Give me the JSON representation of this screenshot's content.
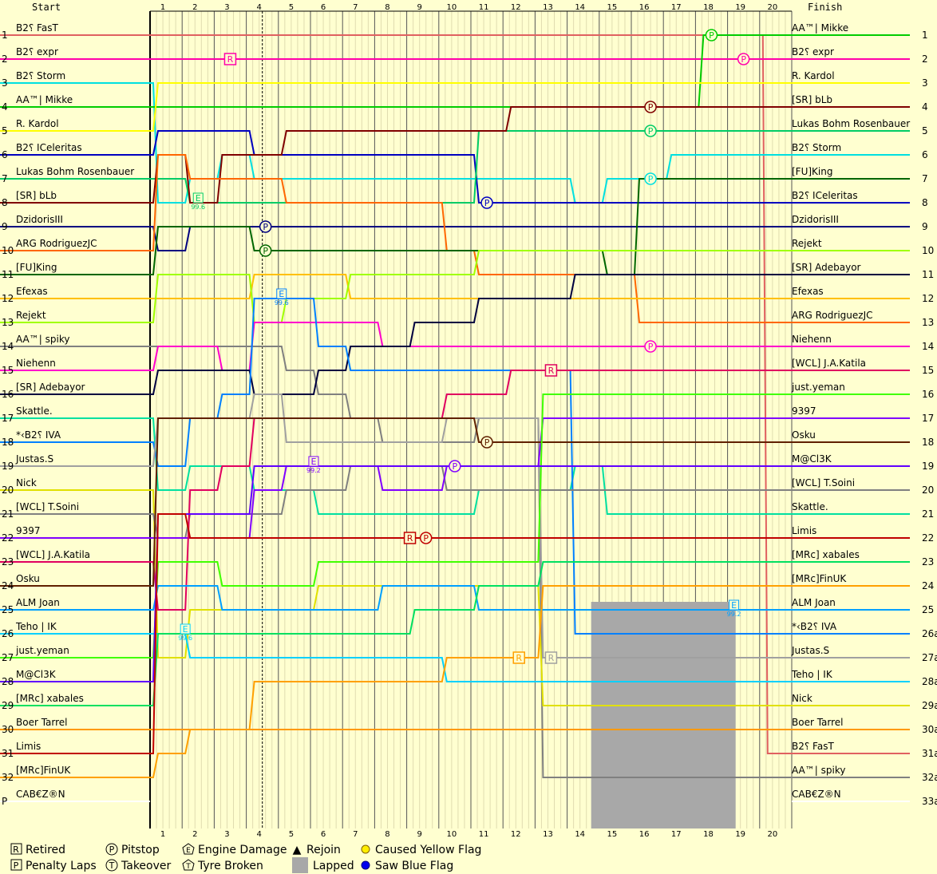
{
  "chart_data": {
    "type": "line",
    "headers": {
      "start": "Start",
      "finish": "Finish"
    },
    "laps": [
      1,
      2,
      3,
      4,
      5,
      6,
      7,
      8,
      9,
      10,
      11,
      12,
      13,
      14,
      15,
      16,
      17,
      18,
      19,
      20
    ],
    "position_labels": [
      "1",
      "2",
      "3",
      "4",
      "5",
      "6",
      "7",
      "8",
      "9",
      "10",
      "11",
      "12",
      "13",
      "14",
      "15",
      "16",
      "17",
      "18",
      "19",
      "20",
      "21",
      "22",
      "23",
      "24",
      "25",
      "26",
      "27",
      "28",
      "29",
      "30",
      "31",
      "32",
      "P"
    ],
    "finish_position_labels": [
      "1",
      "2",
      "3",
      "4",
      "5",
      "6",
      "7",
      "8",
      "9",
      "10",
      "11",
      "12",
      "13",
      "14",
      "15",
      "16",
      "17",
      "18",
      "19",
      "20",
      "21",
      "22",
      "23",
      "24",
      "25",
      "26a",
      "27a",
      "28a",
      "29a",
      "30a",
      "31a",
      "32a",
      "33a"
    ],
    "start_order": [
      "B2⸮ FasT",
      "B2⸮ expr",
      "B2⸮ Storm",
      "AA™| Mikke",
      "R. Kardol",
      "B2⸮ ICeleritas",
      "Lukas Bohm Rosenbauer",
      "[SR] bLb",
      "DzidorisIII",
      "ARG RodriguezJC",
      "[FU]King",
      "Efexas",
      "Rejekt",
      "AA™| spiky",
      "Niehenn",
      "[SR] Adebayor",
      "Skattle.",
      "*‹B2⸮ IVA",
      "Justas.S",
      "Nick",
      "[WCL] T.Soini",
      "9397",
      "[WCL] J.A.Katila",
      "Osku",
      "ALM Joan",
      "Teho | IK",
      "just.yeman",
      "M@Cl3K",
      "[MRc] xabales",
      "Boer Tarrel",
      "Limis",
      "[MRc]FinUK",
      "CAB€Z®N"
    ],
    "finish_order": [
      "AA™| Mikke",
      "B2⸮ expr",
      "R. Kardol",
      "[SR] bLb",
      "Lukas Bohm Rosenbauer",
      "B2⸮ Storm",
      "[FU]King",
      "B2⸮ ICeleritas",
      "DzidorisIII",
      "Rejekt",
      "[SR] Adebayor",
      "Efexas",
      "ARG RodriguezJC",
      "Niehenn",
      "[WCL] J.A.Katila",
      "just.yeman",
      "9397",
      "Osku",
      "M@Cl3K",
      "[WCL] T.Soini",
      "Skattle.",
      "Limis",
      "[MRc] xabales",
      "[MRc]FinUK",
      "ALM Joan",
      "*‹B2⸮ IVA",
      "Justas.S",
      "Teho | IK",
      "Nick",
      "Boer Tarrel",
      "B2⸮ FasT",
      "AA™| spiky",
      "CAB€Z®N"
    ],
    "series": [
      {
        "driver": "B2⸮ FasT",
        "color": "#e06060",
        "positions": [
          1,
          1,
          1,
          1,
          1,
          1,
          1,
          1,
          1,
          1,
          1,
          1,
          1,
          1,
          1,
          1,
          1,
          1,
          1,
          1,
          31
        ],
        "status": "Retired"
      },
      {
        "driver": "B2⸮ expr",
        "color": "#ff00aa",
        "positions": [
          2,
          2,
          2,
          2,
          2,
          2,
          2,
          2,
          2,
          2,
          2,
          2,
          2,
          2,
          2,
          2,
          2,
          2,
          2,
          2,
          2
        ]
      },
      {
        "driver": "B2⸮ Storm",
        "color": "#00e0e0",
        "positions": [
          3,
          8,
          7,
          6,
          7,
          7,
          7,
          7,
          7,
          7,
          7,
          7,
          7,
          7,
          8,
          7,
          7,
          6,
          6,
          6,
          6
        ]
      },
      {
        "driver": "AA™| Mikke",
        "color": "#00cc00",
        "positions": [
          4,
          4,
          4,
          4,
          4,
          4,
          4,
          4,
          4,
          4,
          4,
          4,
          4,
          4,
          4,
          4,
          4,
          4,
          1,
          1,
          1
        ]
      },
      {
        "driver": "R. Kardol",
        "color": "#ffff00",
        "positions": [
          5,
          3,
          3,
          3,
          3,
          3,
          3,
          3,
          3,
          3,
          3,
          3,
          3,
          3,
          3,
          3,
          3,
          3,
          3,
          3,
          3
        ]
      },
      {
        "driver": "B2⸮ ICeleritas",
        "color": "#0000c0",
        "positions": [
          6,
          5,
          5,
          5,
          6,
          6,
          6,
          6,
          6,
          6,
          6,
          8,
          8,
          8,
          8,
          8,
          8,
          8,
          8,
          8,
          8
        ]
      },
      {
        "driver": "Lukas Bohm Rosenbauer",
        "color": "#00cc66",
        "positions": [
          7,
          7,
          8,
          8,
          8,
          8,
          8,
          8,
          8,
          8,
          8,
          5,
          5,
          5,
          5,
          5,
          5,
          5,
          5,
          5,
          5
        ]
      },
      {
        "driver": "[SR] bLb",
        "color": "#800000",
        "positions": [
          8,
          6,
          8,
          6,
          6,
          5,
          5,
          5,
          5,
          5,
          5,
          5,
          4,
          4,
          4,
          4,
          4,
          4,
          4,
          4,
          4
        ]
      },
      {
        "driver": "DzidorisIII",
        "color": "#000080",
        "positions": [
          9,
          10,
          9,
          9,
          9,
          9,
          9,
          9,
          9,
          9,
          9,
          9,
          9,
          9,
          9,
          9,
          9,
          9,
          9,
          9,
          9
        ]
      },
      {
        "driver": "ARG RodriguezJC",
        "color": "#ff6600",
        "positions": [
          10,
          6,
          7,
          7,
          7,
          8,
          8,
          8,
          8,
          8,
          10,
          11,
          11,
          11,
          11,
          11,
          13,
          13,
          13,
          13,
          13
        ]
      },
      {
        "driver": "[FU]King",
        "color": "#006600",
        "positions": [
          11,
          9,
          9,
          9,
          10,
          10,
          10,
          10,
          10,
          10,
          10,
          10,
          10,
          10,
          10,
          11,
          7,
          7,
          7,
          7,
          7
        ]
      },
      {
        "driver": "Efexas",
        "color": "#ffc000",
        "positions": [
          12,
          12,
          12,
          12,
          11,
          11,
          11,
          12,
          12,
          12,
          12,
          12,
          12,
          12,
          12,
          12,
          12,
          12,
          12,
          12,
          12
        ]
      },
      {
        "driver": "Rejekt",
        "color": "#a0ff00",
        "positions": [
          13,
          11,
          11,
          11,
          13,
          12,
          12,
          11,
          11,
          11,
          11,
          10,
          10,
          10,
          10,
          10,
          10,
          10,
          10,
          10,
          10
        ]
      },
      {
        "driver": "AA™| spiky",
        "color": "#808080",
        "positions": [
          14,
          14,
          14,
          14,
          14,
          15,
          16,
          17,
          18,
          18,
          18,
          17,
          17,
          32,
          32,
          32,
          32,
          32,
          32,
          32,
          32
        ]
      },
      {
        "driver": "Niehenn",
        "color": "#ff00cc",
        "positions": [
          15,
          14,
          14,
          15,
          13,
          13,
          13,
          13,
          14,
          14,
          14,
          14,
          14,
          14,
          14,
          14,
          14,
          14,
          14,
          14,
          14
        ]
      },
      {
        "driver": "[SR] Adebayor",
        "color": "#000040",
        "positions": [
          16,
          15,
          15,
          15,
          16,
          16,
          15,
          14,
          14,
          13,
          13,
          12,
          12,
          12,
          11,
          11,
          11,
          11,
          11,
          11,
          11
        ]
      },
      {
        "driver": "Skattle.",
        "color": "#00e0a0",
        "positions": [
          17,
          20,
          19,
          19,
          20,
          20,
          21,
          21,
          21,
          21,
          21,
          20,
          20,
          20,
          19,
          21,
          21,
          21,
          21,
          21,
          21
        ]
      },
      {
        "driver": "*‹B2⸮ IVA",
        "color": "#0080ff",
        "positions": [
          18,
          19,
          17,
          16,
          12,
          12,
          14,
          15,
          15,
          15,
          15,
          15,
          15,
          15,
          26,
          26,
          26,
          26,
          26,
          26,
          26
        ]
      },
      {
        "driver": "Justas.S",
        "color": "#a0a0a0",
        "positions": [
          19,
          17,
          17,
          17,
          16,
          18,
          18,
          18,
          18,
          18,
          17,
          17,
          17,
          27,
          27,
          27,
          27,
          27,
          27,
          27,
          27
        ]
      },
      {
        "driver": "Nick",
        "color": "#e0e000",
        "positions": [
          20,
          27,
          25,
          25,
          25,
          25,
          24,
          24,
          24,
          24,
          24,
          24,
          24,
          29,
          29,
          29,
          29,
          29,
          29,
          29,
          29
        ]
      },
      {
        "driver": "[WCL] T.Soini",
        "color": "#808080",
        "positions": [
          21,
          22,
          21,
          21,
          21,
          20,
          20,
          19,
          19,
          19,
          20,
          20,
          20,
          20,
          20,
          20,
          20,
          20,
          20,
          20,
          20
        ]
      },
      {
        "driver": "9397",
        "color": "#8000ff",
        "positions": [
          22,
          22,
          22,
          22,
          20,
          19,
          19,
          19,
          20,
          20,
          19,
          19,
          19,
          17,
          17,
          17,
          17,
          17,
          17,
          17,
          17
        ]
      },
      {
        "driver": "[WCL] J.A.Katila",
        "color": "#e00060",
        "positions": [
          23,
          25,
          20,
          19,
          17,
          17,
          17,
          17,
          17,
          17,
          16,
          16,
          15,
          15,
          15,
          15,
          15,
          15,
          15,
          15,
          15
        ]
      },
      {
        "driver": "Osku",
        "color": "#602000",
        "positions": [
          24,
          17,
          17,
          17,
          17,
          17,
          17,
          17,
          17,
          17,
          17,
          18,
          18,
          18,
          18,
          18,
          18,
          18,
          18,
          18,
          18
        ]
      },
      {
        "driver": "ALM Joan",
        "color": "#00a0ff",
        "positions": [
          25,
          24,
          24,
          25,
          25,
          25,
          25,
          25,
          24,
          24,
          24,
          25,
          25,
          25,
          25,
          25,
          25,
          25,
          25,
          25,
          25
        ]
      },
      {
        "driver": "Teho | IK",
        "color": "#00d0ff",
        "positions": [
          26,
          26,
          27,
          27,
          27,
          27,
          27,
          27,
          27,
          27,
          28,
          28,
          28,
          28,
          28,
          28,
          28,
          28,
          28,
          28,
          28
        ]
      },
      {
        "driver": "just.yeman",
        "color": "#40ff00",
        "positions": [
          27,
          23,
          23,
          24,
          24,
          24,
          23,
          23,
          23,
          23,
          23,
          23,
          23,
          16,
          16,
          16,
          16,
          16,
          16,
          16,
          16
        ]
      },
      {
        "driver": "M@Cl3K",
        "color": "#6000ff",
        "positions": [
          28,
          21,
          21,
          21,
          19,
          19,
          19,
          19,
          19,
          19,
          19,
          19,
          19,
          19,
          19,
          19,
          19,
          19,
          19,
          19,
          19
        ]
      },
      {
        "driver": "[MRc] xabales",
        "color": "#00e060",
        "positions": [
          29,
          26,
          26,
          26,
          26,
          26,
          26,
          26,
          26,
          25,
          25,
          24,
          24,
          23,
          23,
          23,
          23,
          23,
          23,
          23,
          23
        ]
      },
      {
        "driver": "Boer Tarrel",
        "color": "#ff9900",
        "positions": [
          30,
          30,
          30,
          30,
          30,
          30,
          30,
          30,
          30,
          30,
          30,
          30,
          30,
          30,
          30,
          30,
          30,
          30,
          30,
          30,
          30
        ]
      },
      {
        "driver": "Limis",
        "color": "#c00000",
        "positions": [
          31,
          21,
          22,
          22,
          22,
          22,
          22,
          22,
          22,
          22,
          22,
          22,
          22,
          22,
          22,
          22,
          22,
          22,
          22,
          22,
          22
        ]
      },
      {
        "driver": "[MRc]FinUK",
        "color": "#ffa000",
        "positions": [
          32,
          31,
          30,
          30,
          28,
          28,
          28,
          28,
          28,
          28,
          27,
          27,
          27,
          24,
          24,
          24,
          24,
          24,
          24,
          24,
          24
        ]
      }
    ],
    "legend": [
      {
        "symbol": "R",
        "label": "Retired"
      },
      {
        "symbol": "P",
        "label": "Penalty Laps"
      },
      {
        "symbol": "P",
        "label": "Pitstop"
      },
      {
        "symbol": "T",
        "label": "Takeover"
      },
      {
        "symbol": "E",
        "label": "Engine Damage"
      },
      {
        "symbol": "T",
        "label": "Tyre Broken"
      },
      {
        "symbol": "▲",
        "label": "Rejoin"
      },
      {
        "symbol": "■",
        "label": "Lapped"
      },
      {
        "symbol": "●",
        "label": "Caused Yellow Flag"
      },
      {
        "symbol": "●",
        "label": "Saw Blue Flag"
      }
    ],
    "annotations": [
      {
        "type": "pitstop",
        "driver": "AA™| Mikke",
        "lap": 18.2
      },
      {
        "type": "pitstop",
        "driver": "B2⸮ expr",
        "lap": 19.2
      },
      {
        "type": "pitstop",
        "driver": "[SR] bLb",
        "lap": 16.3
      },
      {
        "type": "pitstop",
        "driver": "Lukas Bohm Rosenbauer",
        "lap": 16.3
      },
      {
        "type": "pitstop",
        "driver": "B2⸮ Storm",
        "lap": 16.3
      },
      {
        "type": "pitstop",
        "driver": "B2⸮ ICeleritas",
        "lap": 11.2
      },
      {
        "type": "pitstop",
        "driver": "DzidorisIII",
        "lap": 4.3
      },
      {
        "type": "pitstop",
        "driver": "[FU]King",
        "lap": 4.3
      },
      {
        "type": "pitstop",
        "driver": "Niehenn",
        "lap": 16.3
      },
      {
        "type": "pitstop",
        "driver": "Osku",
        "lap": 11.2
      },
      {
        "type": "pitstop",
        "driver": "9397",
        "lap": 10.2
      },
      {
        "type": "pitstop",
        "driver": "Limis",
        "lap": 9.3
      },
      {
        "type": "retired",
        "driver": "B2⸮ expr",
        "lap": 3.2
      },
      {
        "type": "retired",
        "driver": "[WCL] J.A.Katila",
        "lap": 13.2
      },
      {
        "type": "retired",
        "driver": "Justas.S",
        "lap": 13.2
      },
      {
        "type": "retired",
        "driver": "Limis",
        "lap": 8.8
      },
      {
        "type": "retired",
        "driver": "[MRc]FinUK",
        "lap": 12.2
      },
      {
        "type": "engine",
        "driver": "Lukas Bohm Rosenbauer",
        "lap": 2.2,
        "text": "99.6"
      },
      {
        "type": "engine",
        "driver": "*‹B2⸮ IVA",
        "lap": 4.8,
        "text": "99.6"
      },
      {
        "type": "engine",
        "driver": "9397",
        "lap": 5.8,
        "text": "99.2"
      },
      {
        "type": "engine",
        "driver": "ALM Joan",
        "lap": 18.9,
        "text": "99.2"
      },
      {
        "type": "engine",
        "driver": "Teho | IK",
        "lap": 1.8,
        "text": "99.6"
      }
    ],
    "lapped_region": {
      "from_lap": 14.5,
      "to_lap": 19.5
    }
  }
}
